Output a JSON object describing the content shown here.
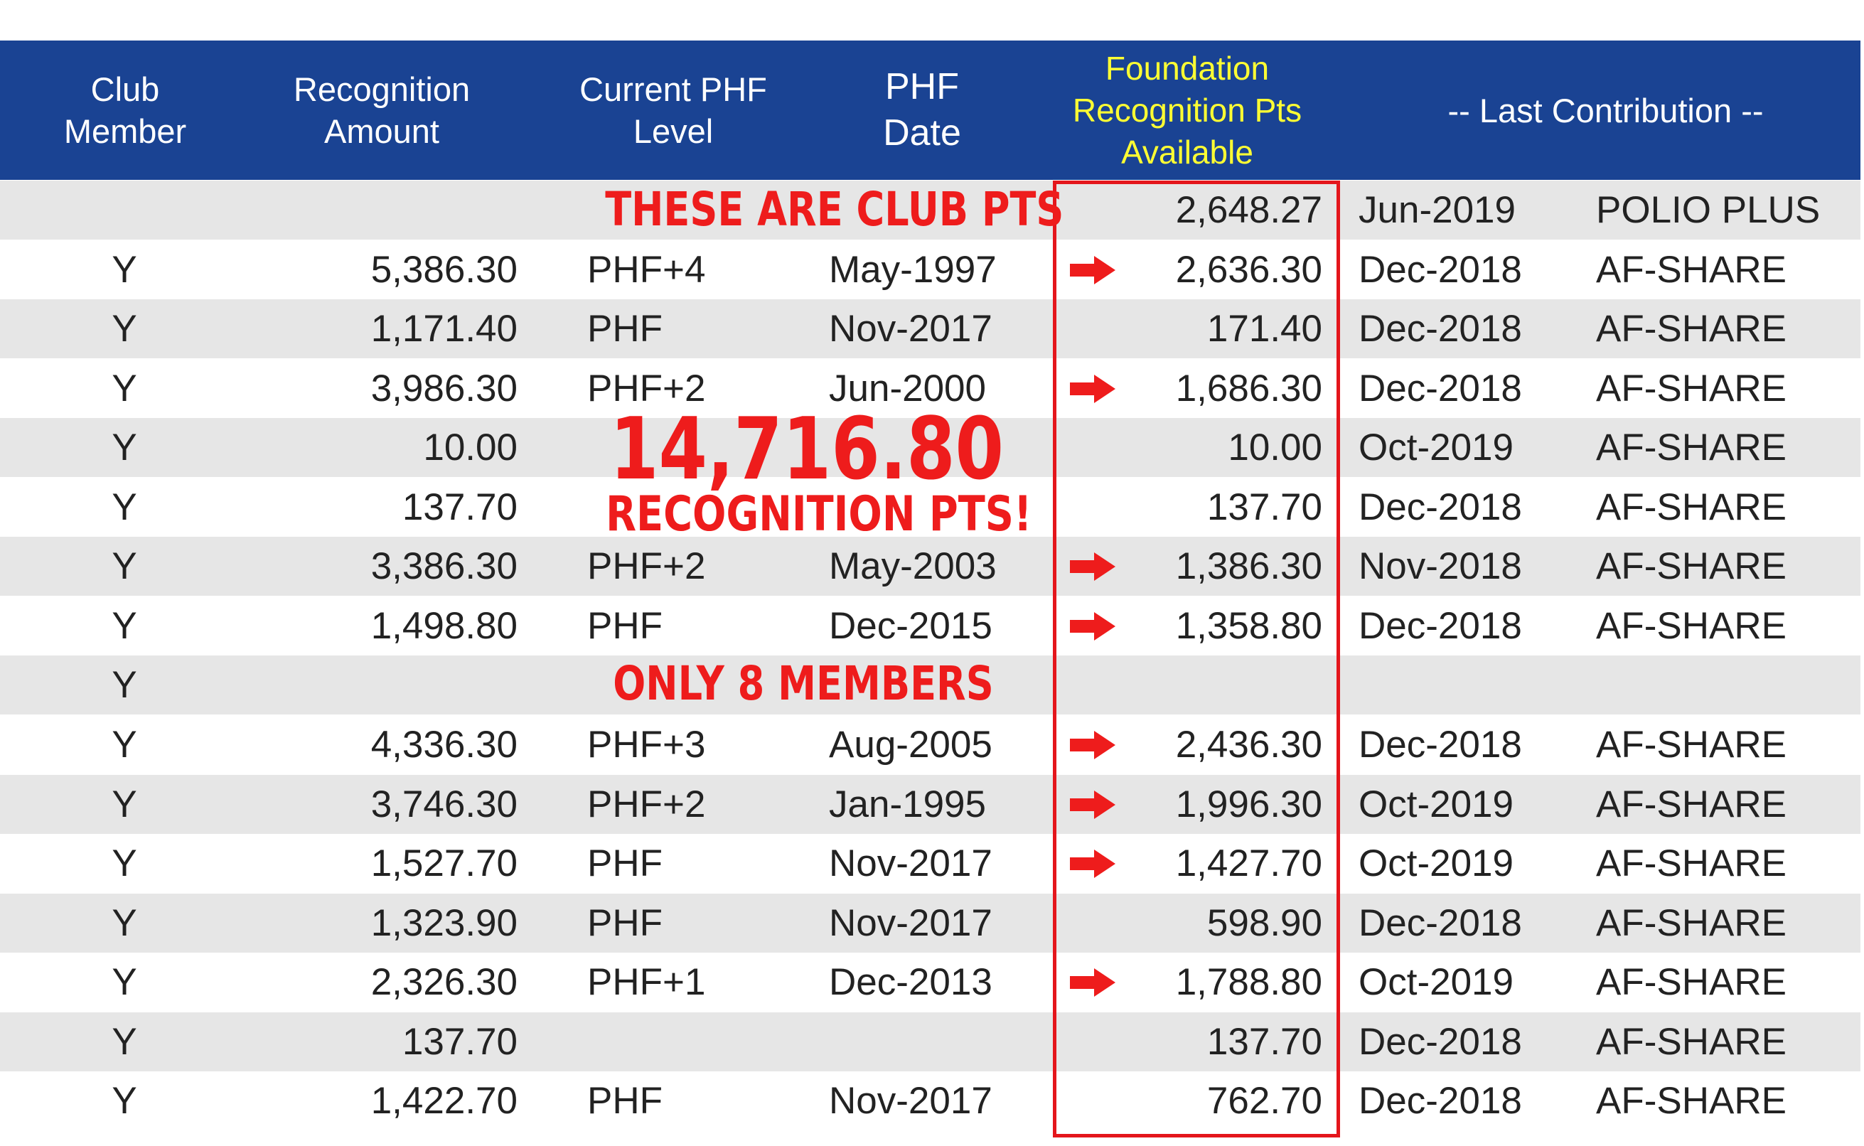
{
  "header": {
    "club_member": "Club\nMember",
    "recognition_amount": "Recognition\nAmount",
    "current_phf_level": "Current PHF\nLevel",
    "phf_date": "PHF\nDate",
    "foundation_pts": "Foundation\nRecognition Pts\nAvailable",
    "last_contribution": "-- Last Contribution --"
  },
  "annotations": {
    "club_pts": "THESE ARE CLUB PTS",
    "total": "14,716.80",
    "total_label": "RECOGNITION PTS!",
    "members_note": "ONLY 8 MEMBERS"
  },
  "colors": {
    "header_bg": "#1a4393",
    "header_highlight_text": "#ffff33",
    "accent_red": "#ee1c1c",
    "row_alt_bg": "#e6e6e6"
  },
  "rows": [
    {
      "member": "",
      "amount": "",
      "level": "",
      "date": "",
      "arrow": false,
      "pts": "2,648.27",
      "lc_date": "Jun-2019",
      "lc_type": "POLIO PLUS"
    },
    {
      "member": "Y",
      "amount": "5,386.30",
      "level": "PHF+4",
      "date": "May-1997",
      "arrow": true,
      "pts": "2,636.30",
      "lc_date": "Dec-2018",
      "lc_type": "AF-SHARE"
    },
    {
      "member": "Y",
      "amount": "1,171.40",
      "level": "PHF",
      "date": "Nov-2017",
      "arrow": false,
      "pts": "171.40",
      "lc_date": "Dec-2018",
      "lc_type": "AF-SHARE"
    },
    {
      "member": "Y",
      "amount": "3,986.30",
      "level": "PHF+2",
      "date": "Jun-2000",
      "arrow": true,
      "pts": "1,686.30",
      "lc_date": "Dec-2018",
      "lc_type": "AF-SHARE"
    },
    {
      "member": "Y",
      "amount": "10.00",
      "level": "",
      "date": "",
      "arrow": false,
      "pts": "10.00",
      "lc_date": "Oct-2019",
      "lc_type": "AF-SHARE"
    },
    {
      "member": "Y",
      "amount": "137.70",
      "level": "",
      "date": "",
      "arrow": false,
      "pts": "137.70",
      "lc_date": "Dec-2018",
      "lc_type": "AF-SHARE"
    },
    {
      "member": "Y",
      "amount": "3,386.30",
      "level": "PHF+2",
      "date": "May-2003",
      "arrow": true,
      "pts": "1,386.30",
      "lc_date": "Nov-2018",
      "lc_type": "AF-SHARE"
    },
    {
      "member": "Y",
      "amount": "1,498.80",
      "level": "PHF",
      "date": "Dec-2015",
      "arrow": true,
      "pts": "1,358.80",
      "lc_date": "Dec-2018",
      "lc_type": "AF-SHARE"
    },
    {
      "member": "Y",
      "amount": "",
      "level": "",
      "date": "",
      "arrow": false,
      "pts": "",
      "lc_date": "",
      "lc_type": ""
    },
    {
      "member": "Y",
      "amount": "4,336.30",
      "level": "PHF+3",
      "date": "Aug-2005",
      "arrow": true,
      "pts": "2,436.30",
      "lc_date": "Dec-2018",
      "lc_type": "AF-SHARE"
    },
    {
      "member": "Y",
      "amount": "3,746.30",
      "level": "PHF+2",
      "date": "Jan-1995",
      "arrow": true,
      "pts": "1,996.30",
      "lc_date": "Oct-2019",
      "lc_type": "AF-SHARE"
    },
    {
      "member": "Y",
      "amount": "1,527.70",
      "level": "PHF",
      "date": "Nov-2017",
      "arrow": true,
      "pts": "1,427.70",
      "lc_date": "Oct-2019",
      "lc_type": "AF-SHARE"
    },
    {
      "member": "Y",
      "amount": "1,323.90",
      "level": "PHF",
      "date": "Nov-2017",
      "arrow": false,
      "pts": "598.90",
      "lc_date": "Dec-2018",
      "lc_type": "AF-SHARE"
    },
    {
      "member": "Y",
      "amount": "2,326.30",
      "level": "PHF+1",
      "date": "Dec-2013",
      "arrow": true,
      "pts": "1,788.80",
      "lc_date": "Oct-2019",
      "lc_type": "AF-SHARE"
    },
    {
      "member": "Y",
      "amount": "137.70",
      "level": "",
      "date": "",
      "arrow": false,
      "pts": "137.70",
      "lc_date": "Dec-2018",
      "lc_type": "AF-SHARE"
    },
    {
      "member": "Y",
      "amount": "1,422.70",
      "level": "PHF",
      "date": "Nov-2017",
      "arrow": false,
      "pts": "762.70",
      "lc_date": "Dec-2018",
      "lc_type": "AF-SHARE"
    }
  ]
}
